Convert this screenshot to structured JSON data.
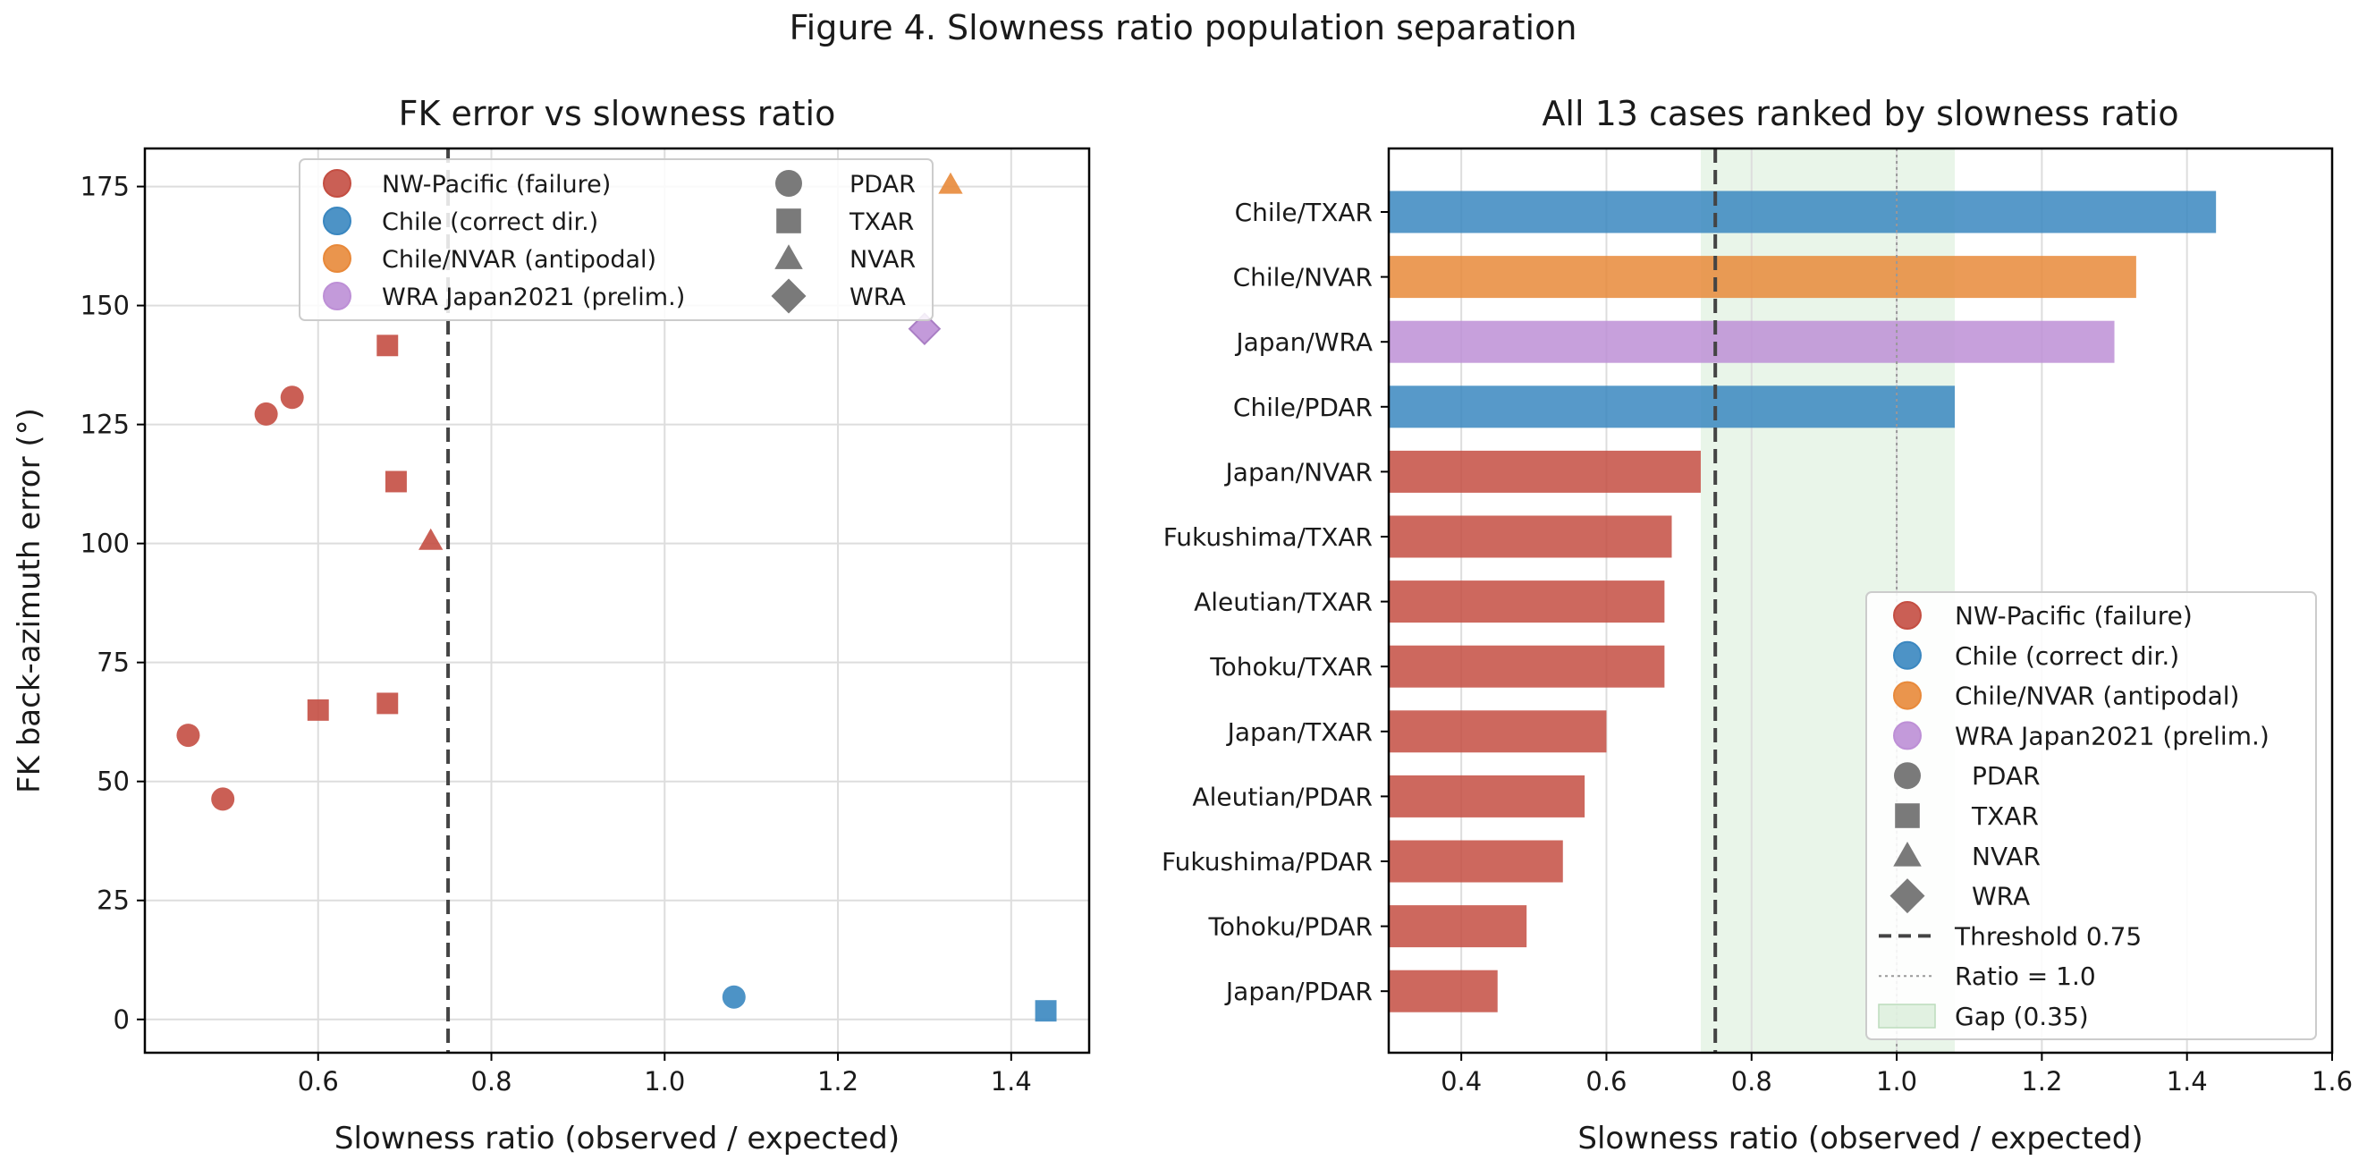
{
  "figure": {
    "title": "Figure 4. Slowness ratio population separation"
  },
  "colors": {
    "nwpacific": "#c44e42",
    "chile": "#3a87c0",
    "antipodal": "#e8893a",
    "wra": "#bd8fd6",
    "gray": "#7a7a7a",
    "gap": "#cfe8cf",
    "threshold": "#444444"
  },
  "chart_data": [
    {
      "type": "scatter",
      "title": "FK error vs slowness ratio",
      "xlabel": "Slowness ratio (observed / expected)",
      "ylabel": "FK back-azimuth error (°)",
      "xlim": [
        0.4,
        1.49
      ],
      "ylim": [
        -7,
        183
      ],
      "xticks": [
        0.6,
        0.8,
        1.0,
        1.2,
        1.4
      ],
      "xtick_labels": [
        "0.6",
        "0.8",
        "1.0",
        "1.2",
        "1.4"
      ],
      "yticks": [
        0,
        25,
        50,
        75,
        100,
        125,
        150,
        175
      ],
      "ytick_labels": [
        "0",
        "25",
        "50",
        "75",
        "100",
        "125",
        "150",
        "175"
      ],
      "grid": true,
      "threshold": 0.75,
      "legend_position": "top-center",
      "legend": {
        "groups": [
          {
            "label": "NW-Pacific (failure)",
            "color_key": "nwpacific",
            "marker": "circle"
          },
          {
            "label": "Chile (correct dir.)",
            "color_key": "chile",
            "marker": "circle"
          },
          {
            "label": "Chile/NVAR (antipodal)",
            "color_key": "antipodal",
            "marker": "circle"
          },
          {
            "label": "WRA Japan2021 (prelim.)",
            "color_key": "wra",
            "marker": "circle"
          }
        ],
        "arrays": [
          {
            "label": "PDAR",
            "marker": "circle"
          },
          {
            "label": "TXAR",
            "marker": "square"
          },
          {
            "label": "NVAR",
            "marker": "triangle"
          },
          {
            "label": "WRA",
            "marker": "diamond"
          }
        ]
      },
      "points": [
        {
          "x": 0.45,
          "y": 59.7,
          "group": "nwpacific",
          "marker": "circle"
        },
        {
          "x": 0.49,
          "y": 46.3,
          "group": "nwpacific",
          "marker": "circle"
        },
        {
          "x": 0.54,
          "y": 127.2,
          "group": "nwpacific",
          "marker": "circle"
        },
        {
          "x": 0.57,
          "y": 130.7,
          "group": "nwpacific",
          "marker": "circle"
        },
        {
          "x": 0.6,
          "y": 65.0,
          "group": "nwpacific",
          "marker": "square"
        },
        {
          "x": 0.68,
          "y": 141.6,
          "group": "nwpacific",
          "marker": "square"
        },
        {
          "x": 0.68,
          "y": 66.4,
          "group": "nwpacific",
          "marker": "square"
        },
        {
          "x": 0.69,
          "y": 113.0,
          "group": "nwpacific",
          "marker": "square"
        },
        {
          "x": 0.73,
          "y": 100.6,
          "group": "nwpacific",
          "marker": "triangle"
        },
        {
          "x": 1.08,
          "y": 4.7,
          "group": "chile",
          "marker": "circle"
        },
        {
          "x": 1.44,
          "y": 1.8,
          "group": "chile",
          "marker": "square"
        },
        {
          "x": 1.33,
          "y": 175.4,
          "group": "antipodal",
          "marker": "triangle"
        },
        {
          "x": 1.3,
          "y": 145.1,
          "group": "wra",
          "marker": "diamond"
        }
      ]
    },
    {
      "type": "bar",
      "orientation": "horizontal",
      "title": "All 13 cases ranked by slowness ratio",
      "xlabel": "Slowness ratio (observed / expected)",
      "xlim": [
        0.3,
        1.6
      ],
      "xticks": [
        0.4,
        0.6,
        0.8,
        1.0,
        1.2,
        1.4,
        1.6
      ],
      "xtick_labels": [
        "0.4",
        "0.6",
        "0.8",
        "1.0",
        "1.2",
        "1.4",
        "1.6"
      ],
      "grid": true,
      "threshold": 0.75,
      "ratio_line": 1.0,
      "gap_band": [
        0.73,
        1.08
      ],
      "legend_position": "lower-right",
      "categories": [
        "Chile/TXAR",
        "Chile/NVAR",
        "Japan/WRA",
        "Chile/PDAR",
        "Japan/NVAR",
        "Fukushima/TXAR",
        "Aleutian/TXAR",
        "Tohoku/TXAR",
        "Japan/TXAR",
        "Aleutian/PDAR",
        "Fukushima/PDAR",
        "Tohoku/PDAR",
        "Japan/PDAR"
      ],
      "values": [
        1.44,
        1.33,
        1.3,
        1.08,
        0.73,
        0.69,
        0.68,
        0.68,
        0.6,
        0.57,
        0.54,
        0.49,
        0.45
      ],
      "groups": [
        "chile",
        "antipodal",
        "wra",
        "chile",
        "nwpacific",
        "nwpacific",
        "nwpacific",
        "nwpacific",
        "nwpacific",
        "nwpacific",
        "nwpacific",
        "nwpacific",
        "nwpacific"
      ],
      "legend": [
        {
          "label": "NW-Pacific (failure)",
          "kind": "circle",
          "color_key": "nwpacific"
        },
        {
          "label": "Chile (correct dir.)",
          "kind": "circle",
          "color_key": "chile"
        },
        {
          "label": "Chile/NVAR (antipodal)",
          "kind": "circle",
          "color_key": "antipodal"
        },
        {
          "label": "WRA Japan2021 (prelim.)",
          "kind": "circle",
          "color_key": "wra"
        },
        {
          "label": "PDAR",
          "kind": "circle",
          "color_key": "gray"
        },
        {
          "label": "TXAR",
          "kind": "square",
          "color_key": "gray"
        },
        {
          "label": "NVAR",
          "kind": "triangle",
          "color_key": "gray"
        },
        {
          "label": "WRA",
          "kind": "diamond",
          "color_key": "gray"
        },
        {
          "label": "Threshold 0.75",
          "kind": "dashed",
          "color_key": "threshold"
        },
        {
          "label": "Ratio = 1.0",
          "kind": "dotted",
          "color_key": "gray"
        },
        {
          "label": "Gap (0.35)",
          "kind": "patch",
          "color_key": "gap"
        }
      ]
    }
  ]
}
